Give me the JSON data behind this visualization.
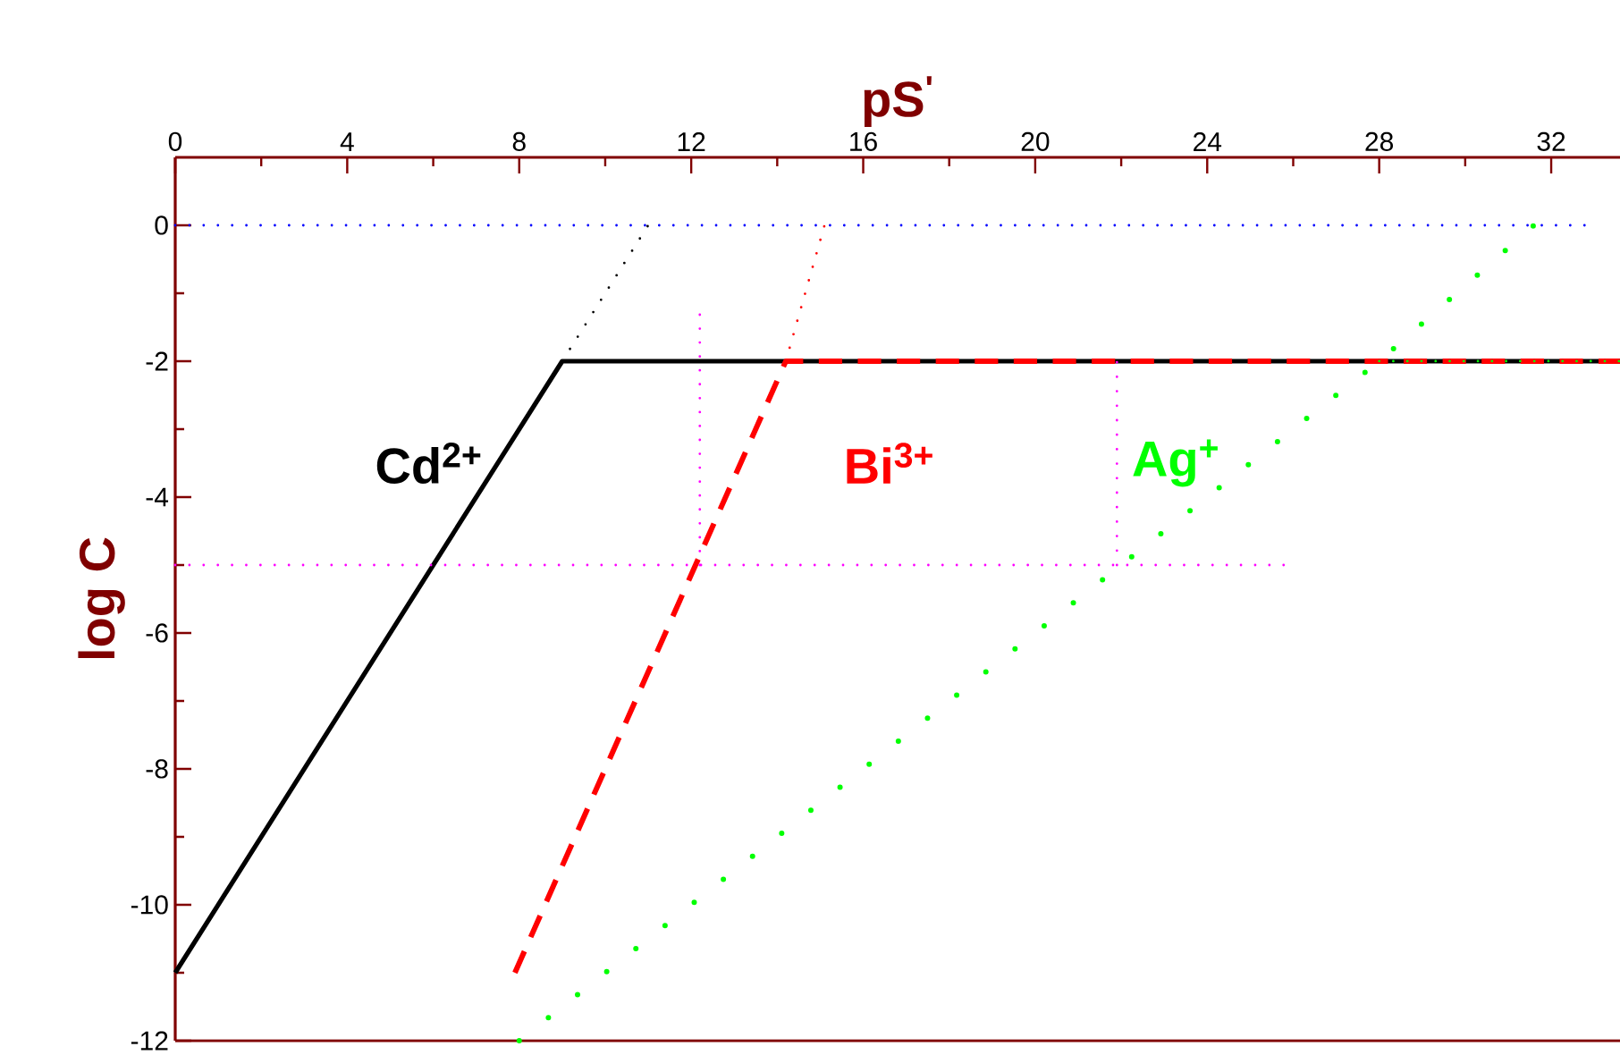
{
  "chart_data": {
    "type": "line",
    "xlabel": "pS$^{'}$",
    "ylabel": "log C",
    "xlim": [
      0,
      33.6
    ],
    "ylim": [
      -12,
      1
    ],
    "xticks": [
      0,
      4,
      8,
      12,
      16,
      20,
      24,
      28,
      32
    ],
    "yticks": [
      -12,
      -10,
      -8,
      -6,
      -4,
      -2,
      0
    ],
    "series": [
      {
        "name": "Cd$^{2+}$",
        "color": "#000000",
        "line_style": "solid",
        "x": [
          0,
          9,
          33.6
        ],
        "values": [
          -11,
          -2,
          -2
        ]
      },
      {
        "color": "#000000",
        "line_style": "dotted",
        "x": [
          9,
          11
        ],
        "values": [
          -2,
          0
        ]
      },
      {
        "name": "Bi$^{3+}$",
        "color": "#ff0000",
        "line_style": "dashed",
        "x": [
          7.9,
          14.2,
          33.6
        ],
        "values": [
          -11,
          -2,
          -2
        ]
      },
      {
        "color": "#ff0000",
        "line_style": "dotted",
        "x": [
          14.2,
          15.1
        ],
        "values": [
          -2,
          0
        ]
      },
      {
        "name": "Ag$^{+}$",
        "color": "#00ff00",
        "line_style": "dotted",
        "x": [
          8,
          28,
          31.6
        ],
        "values": [
          -12,
          -2,
          0
        ]
      },
      {
        "color": "#00ff00",
        "line_style": "dotted",
        "x": [
          28,
          33.6
        ],
        "values": [
          -2,
          -2
        ]
      },
      {
        "color": "#0000ff",
        "line_style": "dotted",
        "x": [
          0,
          32.8
        ],
        "values": [
          0,
          0
        ]
      },
      {
        "color": "#ff00ff",
        "line_style": "dotted",
        "x": [
          0,
          25.8
        ],
        "values": [
          -5,
          -5
        ]
      },
      {
        "color": "#ff00ff",
        "line_style": "dotted",
        "x": [
          12.2,
          12.2
        ],
        "values": [
          -5,
          -1.3
        ]
      },
      {
        "color": "#ff00ff",
        "line_style": "dotted",
        "x": [
          21.9,
          21.9
        ],
        "values": [
          -5,
          -2
        ]
      }
    ]
  }
}
